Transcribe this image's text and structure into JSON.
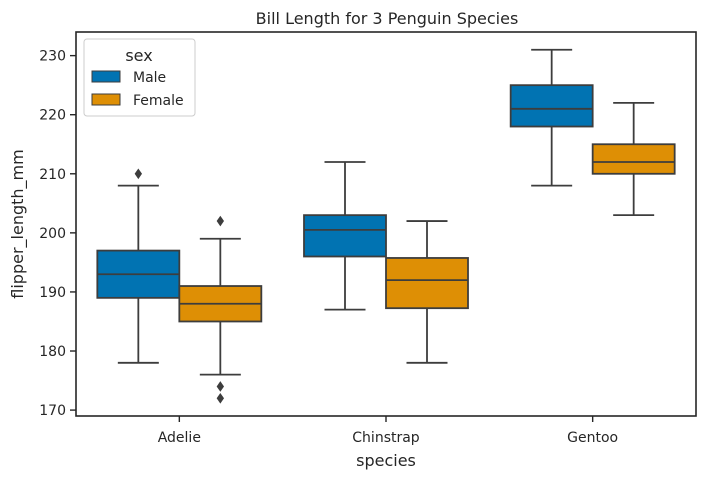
{
  "chart_data": {
    "type": "box",
    "title": "Bill Length for 3 Penguin Species",
    "xlabel": "species",
    "ylabel": "flipper_length_mm",
    "categories": [
      "Adelie",
      "Chinstrap",
      "Gentoo"
    ],
    "ylim": [
      169,
      234
    ],
    "yticks": [
      170,
      180,
      190,
      200,
      210,
      220,
      230
    ],
    "grid": false,
    "legend": {
      "title": "sex",
      "placement": "top-left"
    },
    "series": [
      {
        "name": "Male",
        "color": "#0173b2",
        "boxes": [
          {
            "whisker_low": 178,
            "q1": 189,
            "median": 193,
            "q3": 197,
            "whisker_high": 208,
            "outliers": [
              210
            ]
          },
          {
            "whisker_low": 187,
            "q1": 196,
            "median": 200.5,
            "q3": 203,
            "whisker_high": 212,
            "outliers": []
          },
          {
            "whisker_low": 208,
            "q1": 218,
            "median": 221,
            "q3": 225,
            "whisker_high": 231,
            "outliers": []
          }
        ]
      },
      {
        "name": "Female",
        "color": "#de8f05",
        "boxes": [
          {
            "whisker_low": 176,
            "q1": 185,
            "median": 188,
            "q3": 191,
            "whisker_high": 199,
            "outliers": [
              202,
              174,
              172
            ]
          },
          {
            "whisker_low": 178,
            "q1": 187.25,
            "median": 192,
            "q3": 195.75,
            "whisker_high": 202,
            "outliers": []
          },
          {
            "whisker_low": 203,
            "q1": 210,
            "median": 212,
            "q3": 215,
            "whisker_high": 222,
            "outliers": []
          }
        ]
      }
    ]
  }
}
